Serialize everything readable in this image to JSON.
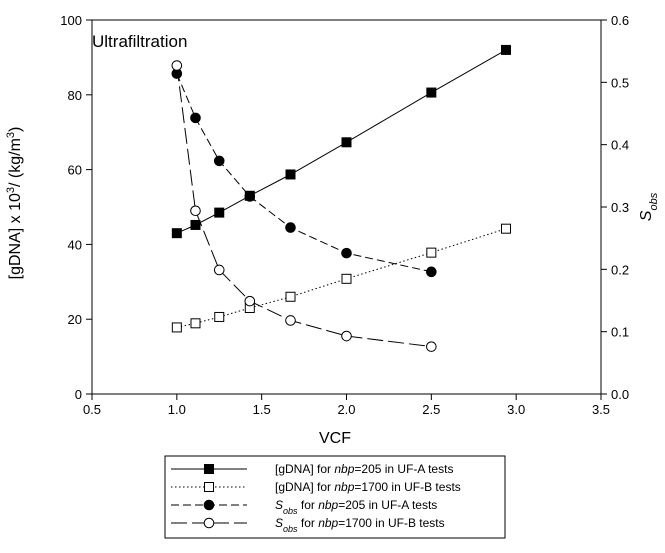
{
  "chart_data": {
    "type": "line",
    "title": "Ultrafiltration",
    "xlabel": "VCF",
    "ylabel_left": "[gDNA] x 10³/ (kg/m³)",
    "ylabel_right": "S_obs",
    "xlim": [
      0.5,
      3.5
    ],
    "ylim_left": [
      0,
      100
    ],
    "ylim_right": [
      0.0,
      0.6
    ],
    "x_ticks": [
      "0.5",
      "1.0",
      "1.5",
      "2.0",
      "2.5",
      "3.0",
      "3.5"
    ],
    "y_left_ticks": [
      "0",
      "20",
      "40",
      "60",
      "80",
      "100"
    ],
    "y_right_ticks": [
      "0.0",
      "0.1",
      "0.2",
      "0.3",
      "0.4",
      "0.5",
      "0.6"
    ],
    "grid": false,
    "legend_position": "bottom-center",
    "series": [
      {
        "axis": "left",
        "marker": "filled-square",
        "line": "solid",
        "legend": {
          "pre": "[gDNA] for ",
          "it": "nbp",
          "post": "=205 in UF-A tests"
        },
        "x": [
          1.0,
          1.11,
          1.25,
          1.43,
          1.67,
          2.0,
          2.5,
          2.94
        ],
        "y": [
          43,
          45.2,
          48.5,
          53,
          58.7,
          67.3,
          80.6,
          92
        ]
      },
      {
        "axis": "left",
        "marker": "open-square",
        "line": "dotted",
        "legend": {
          "pre": "[gDNA] for ",
          "it": "nbp",
          "post": "=1700 in UF-B tests"
        },
        "x": [
          1.0,
          1.11,
          1.25,
          1.43,
          1.67,
          2.0,
          2.5,
          2.94
        ],
        "y": [
          17.8,
          18.9,
          20.6,
          23,
          26,
          30.8,
          37.8,
          44.2
        ]
      },
      {
        "axis": "right",
        "marker": "filled-circle",
        "line": "dashed",
        "legend": {
          "sym": "S",
          "sub": "obs",
          "pre": " for ",
          "it": "nbp",
          "post": "=205 in UF-A tests"
        },
        "x": [
          1.0,
          1.11,
          1.25,
          1.43,
          1.67,
          2.0,
          2.5
        ],
        "y": [
          0.514,
          0.443,
          0.374,
          0.317,
          0.267,
          0.226,
          0.196
        ]
      },
      {
        "axis": "right",
        "marker": "open-circle",
        "line": "long-dash",
        "legend": {
          "sym": "S",
          "sub": "obs",
          "pre": " for ",
          "it": "nbp",
          "post": "=1700 in UF-B tests"
        },
        "x": [
          1.0,
          1.11,
          1.25,
          1.43,
          1.67,
          2.0,
          2.5
        ],
        "y": [
          0.527,
          0.294,
          0.199,
          0.149,
          0.118,
          0.093,
          0.076
        ]
      }
    ]
  }
}
